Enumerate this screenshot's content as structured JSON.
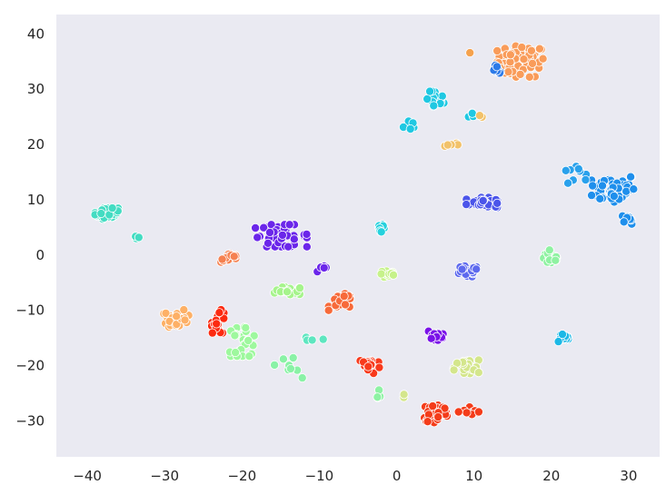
{
  "chart_data": {
    "type": "scatter",
    "title": "",
    "xlabel": "",
    "ylabel": "",
    "xlim": [
      -44,
      34
    ],
    "ylim": [
      -36.5,
      43.5
    ],
    "xticks": [
      -40,
      -30,
      -20,
      -10,
      0,
      10,
      20,
      30
    ],
    "yticks": [
      -30,
      -20,
      -10,
      0,
      10,
      20,
      30,
      40
    ],
    "xtick_labels": [
      "−40",
      "−30",
      "−20",
      "−10",
      "0",
      "10",
      "20",
      "30"
    ],
    "ytick_labels": [
      "−30",
      "−20",
      "−10",
      "0",
      "10",
      "20",
      "30",
      "40"
    ],
    "grid": false,
    "legend": "none",
    "background": "#eaeaf2",
    "clusters": [
      {
        "color": "#f99c5a",
        "center": [
          16,
          35
        ],
        "spread": [
          3.0,
          2.8
        ],
        "n": 70
      },
      {
        "color": "#2c7ae8",
        "center": [
          13,
          33.5
        ],
        "spread": [
          0.7,
          0.8
        ],
        "n": 8
      },
      {
        "color": "#f5a24e",
        "center": [
          9.5,
          36.5
        ],
        "spread": [
          0.1,
          0.1
        ],
        "n": 1
      },
      {
        "color": "#1fc8e2",
        "center": [
          5,
          28
        ],
        "spread": [
          1.1,
          1.6
        ],
        "n": 20
      },
      {
        "color": "#1fc8e2",
        "center": [
          1.5,
          23.5
        ],
        "spread": [
          1.0,
          0.9
        ],
        "n": 7
      },
      {
        "color": "#1fc8e2",
        "center": [
          10,
          25.5
        ],
        "spread": [
          0.7,
          0.6
        ],
        "n": 4
      },
      {
        "color": "#f2c26a",
        "center": [
          11,
          25
        ],
        "spread": [
          0.3,
          0.4
        ],
        "n": 2
      },
      {
        "color": "#f2c26a",
        "center": [
          7,
          20
        ],
        "spread": [
          0.9,
          0.4
        ],
        "n": 5
      },
      {
        "color": "#1f8fec",
        "center": [
          28,
          12
        ],
        "spread": [
          2.8,
          2.6
        ],
        "n": 55
      },
      {
        "color": "#1f8fec",
        "center": [
          30,
          6.5
        ],
        "spread": [
          0.8,
          0.9
        ],
        "n": 10
      },
      {
        "color": "#2aa1ec",
        "center": [
          23,
          15
        ],
        "spread": [
          1.5,
          2.0
        ],
        "n": 10
      },
      {
        "color": "#4b55ea",
        "center": [
          11,
          9.5
        ],
        "spread": [
          2.0,
          0.9
        ],
        "n": 35
      },
      {
        "color": "#43dcc2",
        "center": [
          -37.5,
          7.5
        ],
        "spread": [
          1.5,
          1.0
        ],
        "n": 35
      },
      {
        "color": "#43dcc2",
        "center": [
          -33.5,
          3.2
        ],
        "spread": [
          0.3,
          0.2
        ],
        "n": 3
      },
      {
        "color": "#24d1dd",
        "center": [
          -2,
          5
        ],
        "spread": [
          0.5,
          1.2
        ],
        "n": 14
      },
      {
        "color": "#6b26ea",
        "center": [
          -15,
          3.5
        ],
        "spread": [
          3.4,
          2.0
        ],
        "n": 40
      },
      {
        "color": "#6b26ea",
        "center": [
          -9.5,
          -2.5
        ],
        "spread": [
          1.0,
          0.5
        ],
        "n": 7
      },
      {
        "color": "#f58150",
        "center": [
          -21.5,
          -0.5
        ],
        "spread": [
          1.2,
          0.8
        ],
        "n": 14
      },
      {
        "color": "#8ff2a2",
        "center": [
          20,
          -0.5
        ],
        "spread": [
          1.0,
          1.4
        ],
        "n": 30
      },
      {
        "color": "#5d69ee",
        "center": [
          9,
          -3
        ],
        "spread": [
          1.5,
          1.0
        ],
        "n": 26
      },
      {
        "color": "#c6f28a",
        "center": [
          -1,
          -3.5
        ],
        "spread": [
          1.2,
          0.6
        ],
        "n": 15
      },
      {
        "color": "#a6f48c",
        "center": [
          -14,
          -6.5
        ],
        "spread": [
          1.8,
          0.7
        ],
        "n": 18
      },
      {
        "color": "#f76a3a",
        "center": [
          -7,
          -8.5
        ],
        "spread": [
          1.8,
          1.5
        ],
        "n": 20
      },
      {
        "color": "#fdb066",
        "center": [
          -28.5,
          -11.5
        ],
        "spread": [
          1.6,
          1.6
        ],
        "n": 30
      },
      {
        "color": "#fc2a10",
        "center": [
          -23,
          -12
        ],
        "spread": [
          0.9,
          2.1
        ],
        "n": 22
      },
      {
        "color": "#9ef89e",
        "center": [
          -20,
          -15.5
        ],
        "spread": [
          2.0,
          2.8
        ],
        "n": 26
      },
      {
        "color": "#8af2a6",
        "center": [
          -14,
          -20
        ],
        "spread": [
          1.8,
          2.4
        ],
        "n": 8
      },
      {
        "color": "#5ee6c0",
        "center": [
          -11,
          -15.5
        ],
        "spread": [
          1.5,
          0.6
        ],
        "n": 6
      },
      {
        "color": "#1cb8e6",
        "center": [
          21.5,
          -15
        ],
        "spread": [
          0.9,
          0.7
        ],
        "n": 14
      },
      {
        "color": "#7a12e8",
        "center": [
          5,
          -14.5
        ],
        "spread": [
          1.0,
          0.9
        ],
        "n": 16
      },
      {
        "color": "#d4e68c",
        "center": [
          9,
          -20.5
        ],
        "spread": [
          1.6,
          1.5
        ],
        "n": 28
      },
      {
        "color": "#f83a1c",
        "center": [
          -3.5,
          -20
        ],
        "spread": [
          1.3,
          1.4
        ],
        "n": 22
      },
      {
        "color": "#f43c1a",
        "center": [
          5,
          -28.5
        ],
        "spread": [
          1.5,
          1.8
        ],
        "n": 50
      },
      {
        "color": "#f43c1a",
        "center": [
          9.5,
          -28.5
        ],
        "spread": [
          1.5,
          1.0
        ],
        "n": 14
      },
      {
        "color": "#8ef2a4",
        "center": [
          -2.5,
          -26
        ],
        "spread": [
          0.7,
          1.6
        ],
        "n": 4
      },
      {
        "color": "#d4e68c",
        "center": [
          0.5,
          -25.5
        ],
        "spread": [
          0.5,
          0.5
        ],
        "n": 2
      }
    ]
  }
}
